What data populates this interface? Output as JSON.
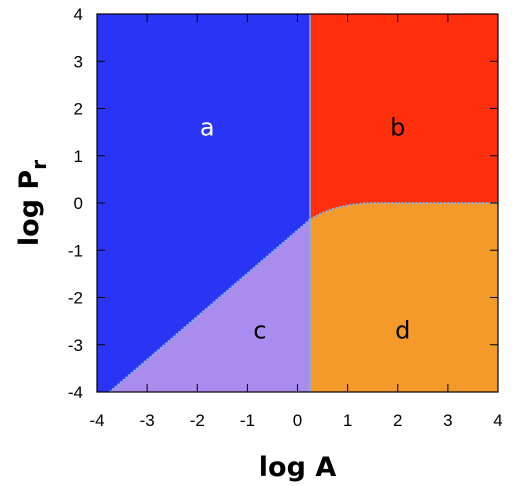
{
  "chart_data": {
    "type": "heatmap",
    "title": "",
    "xlabel": "log A",
    "ylabel_base": "log P",
    "ylabel_sub": "r",
    "xlim": [
      -4,
      4
    ],
    "ylim": [
      -4,
      4
    ],
    "x_ticks": [
      "-4",
      "-3",
      "-2",
      "-1",
      "0",
      "1",
      "2",
      "3",
      "4"
    ],
    "y_ticks": [
      "4",
      "3",
      "2",
      "1",
      "0",
      "-1",
      "-2",
      "-3",
      "-4"
    ],
    "vertical_boundary_x": 0.25,
    "diagonal_boundary": {
      "from": [
        -3.75,
        -4
      ],
      "to": [
        0.25,
        -0.35
      ]
    },
    "curved_boundary": [
      [
        0.25,
        -0.35
      ],
      [
        0.6,
        -0.12
      ],
      [
        1.0,
        -0.03
      ],
      [
        1.5,
        0.0
      ],
      [
        4.0,
        0.0
      ]
    ],
    "regions": [
      {
        "label": "a",
        "color": "#2a34f5",
        "label_color": "#ffffff",
        "label_at": [
          -1.8,
          1.6
        ]
      },
      {
        "label": "b",
        "color": "#ff2e0b",
        "label_color": "#000000",
        "label_at": [
          2.0,
          1.6
        ]
      },
      {
        "label": "c",
        "color": "#a98cee",
        "label_color": "#000000",
        "label_at": [
          -0.75,
          -2.7
        ]
      },
      {
        "label": "d",
        "color": "#f49a2a",
        "label_color": "#000000",
        "label_at": [
          2.1,
          -2.7
        ]
      }
    ],
    "boundary_color": "#7fb3e6",
    "grid": false,
    "legend": "none"
  }
}
